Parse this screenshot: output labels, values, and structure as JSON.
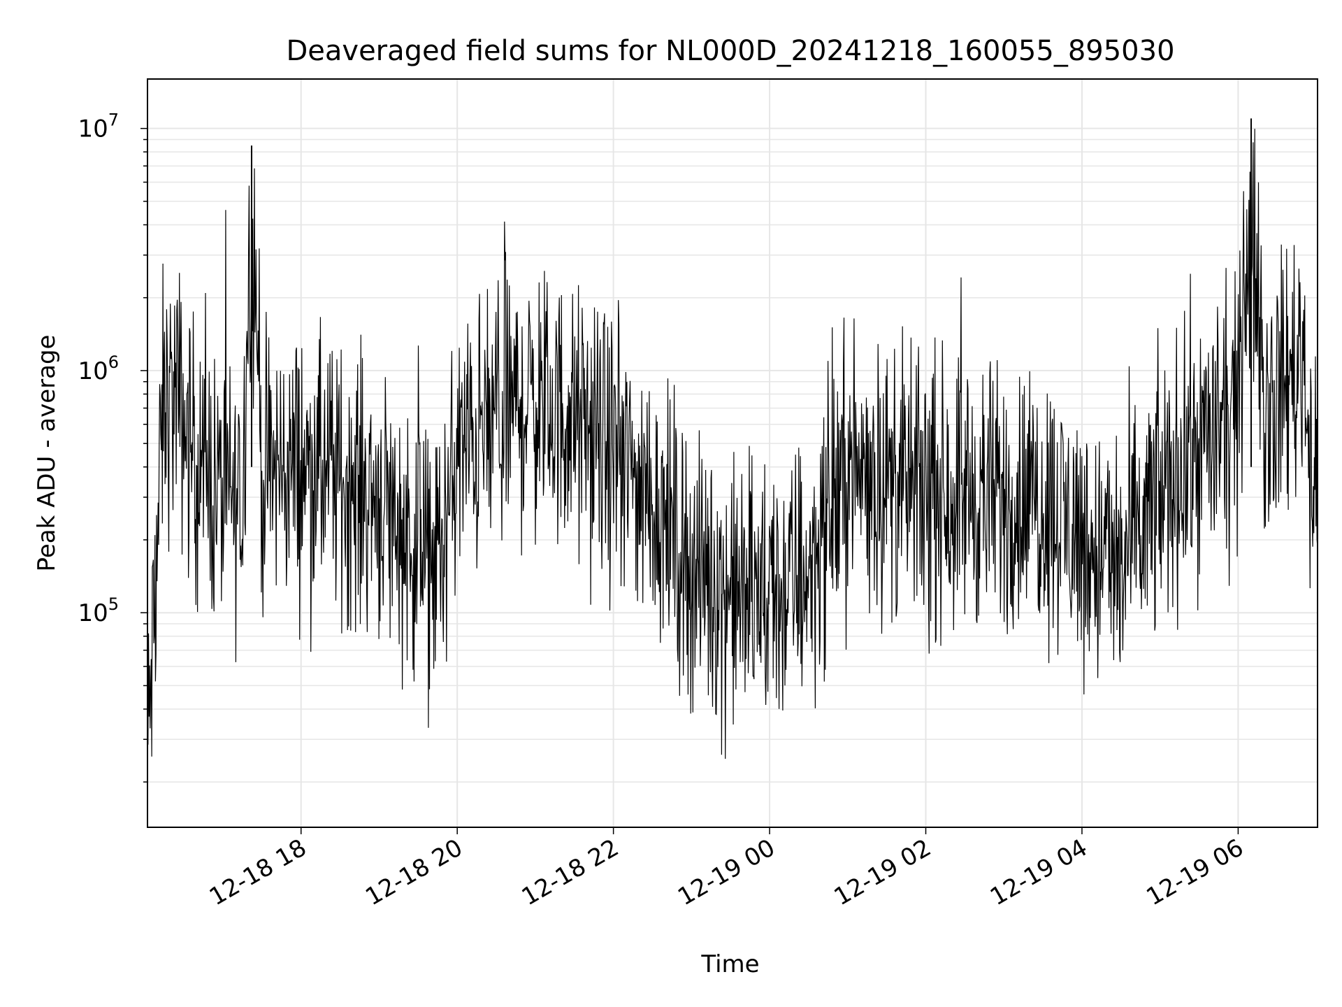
{
  "chart_data": {
    "type": "line",
    "title": "Deaveraged field sums for NL000D_20241218_160055_895030",
    "xlabel": "Time",
    "ylabel": "Peak ADU - average",
    "yscale": "log",
    "grid": true,
    "x_start": "2024-12-18 16:02",
    "x_end": "2024-12-19 07:01",
    "x_ticks": [
      "12-18 18",
      "12-18 20",
      "12-18 22",
      "12-19 00",
      "12-19 02",
      "12-19 04",
      "12-19 06"
    ],
    "y_ticks": [
      {
        "base": "10",
        "exp": "5"
      },
      {
        "base": "10",
        "exp": "6"
      },
      {
        "base": "10",
        "exp": "7"
      }
    ],
    "ylim": [
      13000,
      16000000
    ],
    "line_color": "#000000",
    "series": [
      {
        "x": [
          "2024-12-18 16:02",
          "2024-12-18 16:07",
          "2024-12-18 16:14",
          "2024-12-18 16:24",
          "2024-12-18 16:34",
          "2024-12-18 16:44",
          "2024-12-18 17:00",
          "2024-12-18 17:15",
          "2024-12-18 17:22",
          "2024-12-18 17:30",
          "2024-12-18 17:45",
          "2024-12-18 18:00",
          "2024-12-18 18:30",
          "2024-12-18 19:00",
          "2024-12-18 19:30",
          "2024-12-18 19:40",
          "2024-12-18 19:50",
          "2024-12-18 20:00",
          "2024-12-18 20:30",
          "2024-12-18 20:40",
          "2024-12-18 21:00",
          "2024-12-18 21:30",
          "2024-12-18 22:00",
          "2024-12-18 22:30",
          "2024-12-18 23:00",
          "2024-12-18 23:30",
          "2024-12-19 00:00",
          "2024-12-19 00:30",
          "2024-12-19 01:00",
          "2024-12-19 01:30",
          "2024-12-19 02:00",
          "2024-12-19 02:30",
          "2024-12-19 03:00",
          "2024-12-19 03:30",
          "2024-12-19 04:00",
          "2024-12-19 04:30",
          "2024-12-19 05:00",
          "2024-12-19 05:30",
          "2024-12-19 06:00",
          "2024-12-19 06:10",
          "2024-12-19 06:20",
          "2024-12-19 06:30",
          "2024-12-19 06:50",
          "2024-12-19 07:01"
        ],
        "y": [
          25000,
          90000,
          700000,
          800000,
          500000,
          400000,
          300000,
          280000,
          8500000,
          350000,
          400000,
          400000,
          350000,
          300000,
          180000,
          150000,
          200000,
          450000,
          600000,
          700000,
          750000,
          600000,
          450000,
          300000,
          150000,
          120000,
          110000,
          150000,
          400000,
          350000,
          300000,
          320000,
          280000,
          300000,
          200000,
          150000,
          300000,
          500000,
          600000,
          11000000,
          700000,
          800000,
          1200000,
          200000
        ]
      }
    ]
  }
}
